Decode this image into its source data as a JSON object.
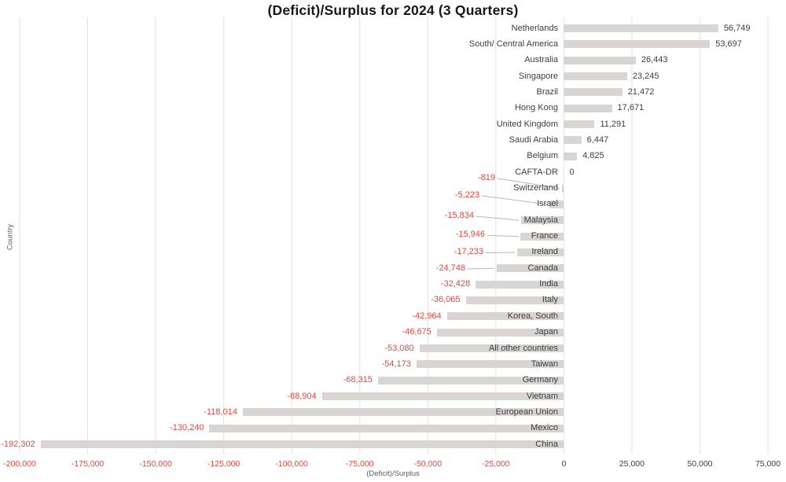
{
  "chart_data": {
    "type": "bar",
    "orientation": "horizontal",
    "title": "(Deficit)/Surplus for 2024 (3 Quarters)",
    "xlabel": "(Deficit)/Surplus",
    "ylabel": "Country",
    "xlim": [
      -200000,
      75000
    ],
    "grid": true,
    "legend": "none",
    "xticks": [
      -200000,
      -175000,
      -150000,
      -125000,
      -100000,
      -75000,
      -50000,
      -25000,
      0,
      25000,
      50000,
      75000
    ],
    "xtick_labels": [
      "-200,000",
      "-175,000",
      "-150,000",
      "-125,000",
      "-100,000",
      "-75,000",
      "-50,000",
      "-25,000",
      "0",
      "25,000",
      "50,000",
      "75,000"
    ],
    "colors": {
      "bar": "#d8d5d2",
      "gridline": "#e2e2e2",
      "leader_line": "#b8b8b8",
      "positive_text": "#3d3d3d",
      "negative_text": "#e1473d",
      "title_text": "#161616",
      "axis_text": "#5a5a5a"
    },
    "rows": [
      {
        "country": "Netherlands",
        "value": 56749,
        "label": "56,749"
      },
      {
        "country": "South/ Central America",
        "value": 53697,
        "label": "53,697"
      },
      {
        "country": "Australia",
        "value": 26443,
        "label": "26,443"
      },
      {
        "country": "Singapore",
        "value": 23245,
        "label": "23,245"
      },
      {
        "country": "Brazil",
        "value": 21472,
        "label": "21,472"
      },
      {
        "country": "Hong Kong",
        "value": 17671,
        "label": "17,671"
      },
      {
        "country": "United Kingdom",
        "value": 11291,
        "label": "11,291"
      },
      {
        "country": "Saudi Arabia",
        "value": 6447,
        "label": "6,447"
      },
      {
        "country": "Belgium",
        "value": 4825,
        "label": "4,825"
      },
      {
        "country": "CAFTA-DR",
        "value": 0,
        "label": "0"
      },
      {
        "country": "Switzerland",
        "value": -819,
        "label": "-819"
      },
      {
        "country": "Israel",
        "value": -5223,
        "label": "-5,223"
      },
      {
        "country": "Malaysia",
        "value": -15834,
        "label": "-15,834"
      },
      {
        "country": "France",
        "value": -15946,
        "label": "-15,946"
      },
      {
        "country": "Ireland",
        "value": -17233,
        "label": "-17,233"
      },
      {
        "country": "Canada",
        "value": -24748,
        "label": "-24,748"
      },
      {
        "country": "India",
        "value": -32428,
        "label": "-32,428"
      },
      {
        "country": "Italy",
        "value": -36065,
        "label": "-36,065"
      },
      {
        "country": "Korea, South",
        "value": -42964,
        "label": "-42,964"
      },
      {
        "country": "Japan",
        "value": -46675,
        "label": "-46,675"
      },
      {
        "country": "All other countries",
        "value": -53080,
        "label": "-53,080"
      },
      {
        "country": "Taiwan",
        "value": -54173,
        "label": "-54,173"
      },
      {
        "country": "Germany",
        "value": -68315,
        "label": "-68,315"
      },
      {
        "country": "Vietnam",
        "value": -88904,
        "label": "-88,904"
      },
      {
        "country": "European Union",
        "value": -118014,
        "label": "-118,014"
      },
      {
        "country": "Mexico",
        "value": -130240,
        "label": "-130,240"
      },
      {
        "country": "China",
        "value": -192302,
        "label": "-192,302"
      }
    ]
  }
}
